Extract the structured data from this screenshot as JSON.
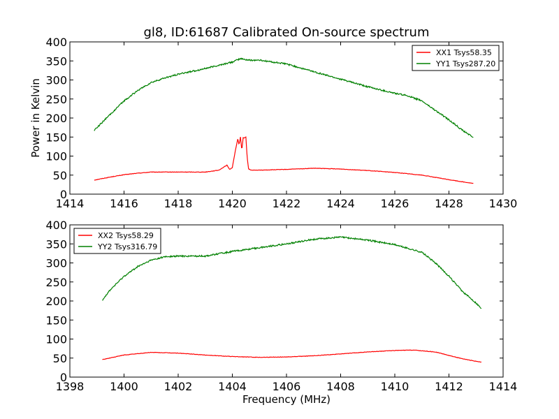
{
  "figure": {
    "title": "gl8, ID:61687 Calibrated On-source spectrum",
    "xlabel": "Frequency (MHz)",
    "ylabel": "Power in Kelvin"
  },
  "chart_data": [
    {
      "type": "line",
      "title": "gl8, ID:61687 Calibrated On-source spectrum",
      "xlabel": "",
      "ylabel": "Power in Kelvin",
      "xlim": [
        1414,
        1430
      ],
      "ylim": [
        0,
        400
      ],
      "xticks": [
        1414,
        1416,
        1418,
        1420,
        1422,
        1424,
        1426,
        1428,
        1430
      ],
      "yticks": [
        0,
        50,
        100,
        150,
        200,
        250,
        300,
        350,
        400
      ],
      "grid": false,
      "legend": "top-right",
      "series": [
        {
          "name": "XX1 Tsys58.35",
          "color": "#ff0000",
          "x": [
            1414.9,
            1415.5,
            1416.0,
            1416.5,
            1417.0,
            1418.0,
            1419.0,
            1419.5,
            1419.8,
            1419.9,
            1420.0,
            1420.1,
            1420.2,
            1420.25,
            1420.3,
            1420.35,
            1420.4,
            1420.45,
            1420.5,
            1420.55,
            1420.6,
            1420.7,
            1421.0,
            1422.0,
            1423.0,
            1424.0,
            1425.0,
            1426.0,
            1427.0,
            1428.0,
            1428.9
          ],
          "y": [
            37,
            45,
            51,
            55,
            58,
            58,
            58,
            63,
            76,
            65,
            70,
            110,
            145,
            130,
            150,
            115,
            148,
            148,
            150,
            95,
            66,
            63,
            63,
            65,
            68,
            66,
            62,
            57,
            50,
            38,
            28
          ]
        },
        {
          "name": "YY1 Tsys287.20",
          "color": "#008000",
          "x": [
            1414.9,
            1415.5,
            1416.0,
            1416.5,
            1417.0,
            1417.5,
            1418.0,
            1419.0,
            1420.0,
            1420.3,
            1420.6,
            1421.0,
            1422.0,
            1423.0,
            1424.0,
            1425.0,
            1426.0,
            1426.5,
            1427.0,
            1427.5,
            1428.0,
            1428.5,
            1428.9
          ],
          "y": [
            168,
            210,
            245,
            272,
            293,
            305,
            315,
            330,
            347,
            356,
            352,
            352,
            342,
            322,
            302,
            282,
            265,
            258,
            245,
            220,
            195,
            168,
            149
          ]
        }
      ]
    },
    {
      "type": "line",
      "title": "",
      "xlabel": "Frequency (MHz)",
      "ylabel": "",
      "xlim": [
        1398,
        1414
      ],
      "ylim": [
        0,
        400
      ],
      "xticks": [
        1398,
        1400,
        1402,
        1404,
        1406,
        1408,
        1410,
        1412,
        1414
      ],
      "yticks": [
        0,
        50,
        100,
        150,
        200,
        250,
        300,
        350,
        400
      ],
      "grid": false,
      "legend": "top-left",
      "series": [
        {
          "name": "XX2 Tsys58.29",
          "color": "#ff0000",
          "x": [
            1399.2,
            1400.0,
            1401.0,
            1402.0,
            1403.0,
            1404.0,
            1405.0,
            1406.0,
            1407.0,
            1408.0,
            1409.0,
            1410.0,
            1410.7,
            1411.5,
            1412.0,
            1412.5,
            1413.2
          ],
          "y": [
            46,
            58,
            65,
            63,
            58,
            54,
            52,
            53,
            56,
            61,
            66,
            70,
            71,
            66,
            57,
            48,
            39
          ]
        },
        {
          "name": "YY2 Tsys316.79",
          "color": "#008000",
          "x": [
            1399.2,
            1399.5,
            1400.0,
            1400.5,
            1401.0,
            1401.5,
            1402.0,
            1403.0,
            1404.0,
            1405.0,
            1406.0,
            1407.0,
            1408.0,
            1409.0,
            1410.0,
            1411.0,
            1411.5,
            1412.0,
            1412.5,
            1413.0,
            1413.2
          ],
          "y": [
            203,
            230,
            265,
            290,
            307,
            316,
            318,
            318,
            330,
            340,
            350,
            362,
            368,
            360,
            348,
            328,
            300,
            265,
            225,
            195,
            180
          ]
        }
      ]
    }
  ]
}
